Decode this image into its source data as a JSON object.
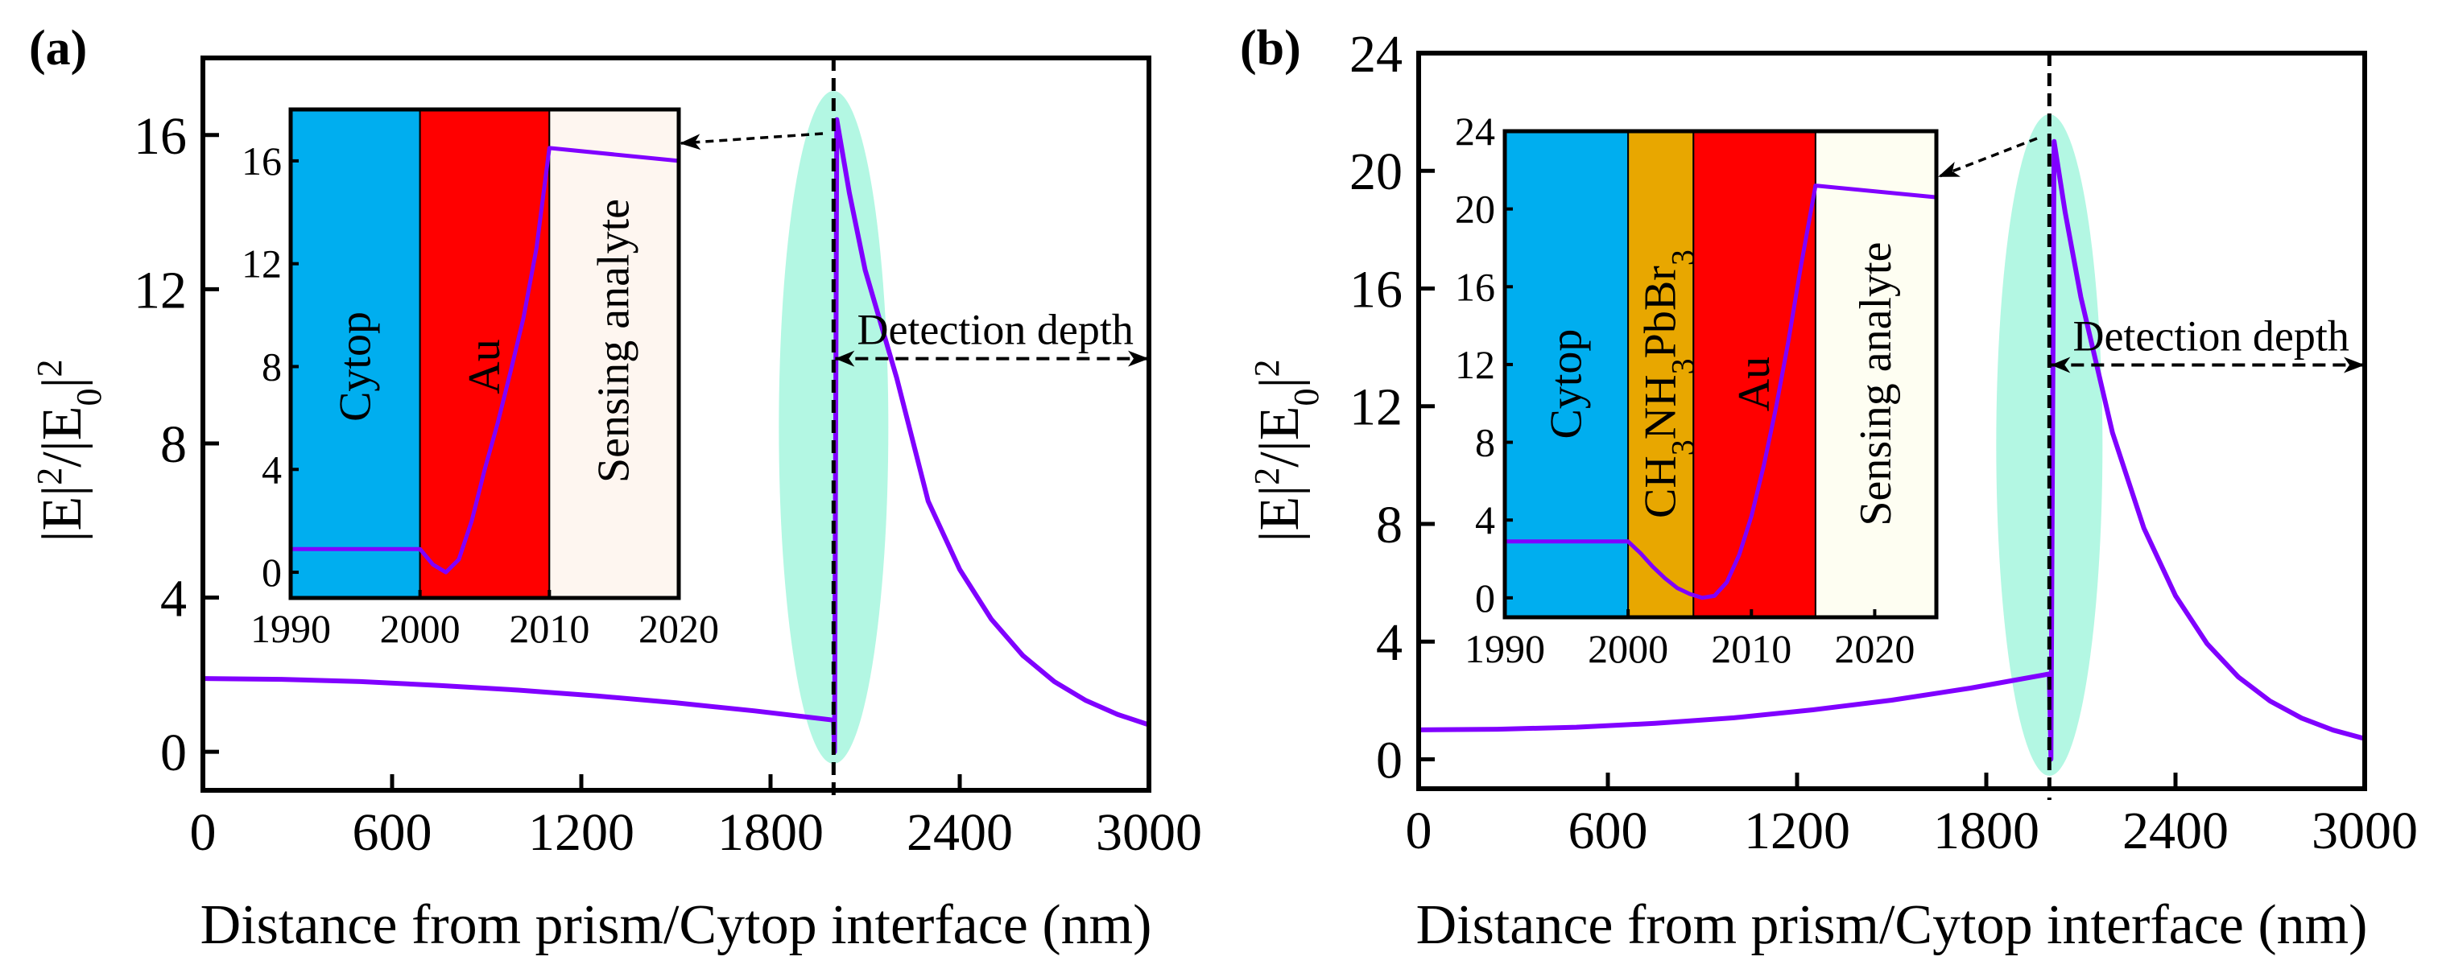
{
  "colors": {
    "curve": "#8000FF",
    "ellipse": "#B3F7E3",
    "cytop": "#00AEEF",
    "perovskite": "#E8A700",
    "au": "#FF0000",
    "analyte_a": "#FEF6F0",
    "analyte_b": "#FEFEF2"
  },
  "chart_data": [
    {
      "panel_label": "(a)",
      "type": "line",
      "xlabel": "Distance from prism/Cytop interface (nm)",
      "ylabel_parts": [
        "|E|",
        "2",
        "/|E",
        "0",
        "|",
        "2"
      ],
      "xlim": [
        0,
        3000
      ],
      "ylim": [
        -1,
        18
      ],
      "xticks": [
        "0",
        "600",
        "1200",
        "1800",
        "2400",
        "3000"
      ],
      "yticks": [
        "0",
        "4",
        "8",
        "12",
        "16"
      ],
      "series": [
        {
          "name": "|E|^2/|E0|^2",
          "x": [
            0,
            250,
            500,
            750,
            1000,
            1250,
            1500,
            1750,
            2000,
            2003,
            2010,
            2050,
            2100,
            2200,
            2300,
            2400,
            2500,
            2600,
            2700,
            2800,
            2900,
            3000
          ],
          "y": [
            1.9,
            1.88,
            1.82,
            1.72,
            1.6,
            1.45,
            1.27,
            1.06,
            0.82,
            0.0,
            16.4,
            14.5,
            12.5,
            9.7,
            6.5,
            4.73,
            3.44,
            2.5,
            1.82,
            1.33,
            0.97,
            0.7
          ]
        }
      ],
      "marker_x": 2000,
      "annotation": {
        "text": "Detection depth",
        "x_from": 2000,
        "x_to": 3000,
        "y": 10.2
      },
      "inset": {
        "xlim": [
          1990,
          2020
        ],
        "ylim": [
          -1,
          18
        ],
        "xticks": [
          "1990",
          "2000",
          "2010",
          "2020"
        ],
        "yticks": [
          "0",
          "4",
          "8",
          "12",
          "16"
        ],
        "layers": [
          {
            "name": "Cytop",
            "from": 1990,
            "to": 2000,
            "color_key": "cytop",
            "label_y": 8
          },
          {
            "name": "Au",
            "from": 2000,
            "to": 2010,
            "color_key": "au",
            "label_y": 8
          },
          {
            "name": "Sensing analyte",
            "from": 2010,
            "to": 2020,
            "color_key": "analyte_a",
            "label_y": 9
          }
        ],
        "series": {
          "x": [
            1990,
            2000,
            2001,
            2002,
            2003,
            2004,
            2005,
            2006,
            2007,
            2008,
            2009,
            2010,
            2020
          ],
          "y": [
            0.9,
            0.9,
            0.3,
            0.0,
            0.5,
            2.0,
            4.0,
            5.8,
            7.8,
            9.9,
            12.6,
            16.5,
            16.0
          ]
        }
      }
    },
    {
      "panel_label": "(b)",
      "type": "line",
      "xlabel": "Distance from prism/Cytop interface (nm)",
      "ylabel_parts": [
        "|E|",
        "2",
        "/|E",
        "0",
        "|",
        "2"
      ],
      "xlim": [
        0,
        3000
      ],
      "ylim": [
        -1,
        24
      ],
      "xticks": [
        "0",
        "600",
        "1200",
        "1800",
        "2400",
        "3000"
      ],
      "yticks": [
        "0",
        "4",
        "8",
        "12",
        "16",
        "20",
        "24"
      ],
      "series": [
        {
          "name": "|E|^2/|E0|^2",
          "x": [
            0,
            250,
            500,
            750,
            1000,
            1250,
            1500,
            1750,
            2000,
            2005,
            2015,
            2050,
            2100,
            2200,
            2300,
            2400,
            2500,
            2600,
            2700,
            2800,
            2900,
            3000
          ],
          "y": [
            1.0,
            1.02,
            1.09,
            1.22,
            1.41,
            1.68,
            2.01,
            2.42,
            2.9,
            0.0,
            21.0,
            18.6,
            15.7,
            11.1,
            7.85,
            5.56,
            3.93,
            2.79,
            1.98,
            1.4,
            0.99,
            0.7
          ]
        }
      ],
      "marker_x": 2000,
      "annotation": {
        "text": "Detection depth",
        "x_from": 2000,
        "x_to": 3000,
        "y": 13.4
      },
      "inset": {
        "xlim": [
          1990,
          2025
        ],
        "ylim": [
          -1,
          24
        ],
        "xticks": [
          "1990",
          "2000",
          "2010",
          "2020"
        ],
        "yticks": [
          "0",
          "4",
          "8",
          "12",
          "16",
          "20",
          "24"
        ],
        "layers": [
          {
            "name": "Cytop",
            "from": 1990,
            "to": 2000,
            "color_key": "cytop",
            "label_y": 11
          },
          {
            "name_parts": [
              "CH",
              "3",
              "NH",
              "3",
              "PbBr",
              "3"
            ],
            "name": "CH3NH3PbBr3",
            "from": 2000,
            "to": 2005.3,
            "color_key": "perovskite",
            "label_y": 11
          },
          {
            "name": "Au",
            "from": 2005.3,
            "to": 2015.2,
            "color_key": "au",
            "label_y": 11
          },
          {
            "name": "Sensing analyte",
            "from": 2015.2,
            "to": 2025,
            "color_key": "analyte_b",
            "label_y": 11
          }
        ],
        "series": {
          "x": [
            1990,
            2000,
            2001,
            2002,
            2003,
            2004,
            2005,
            2006,
            2007,
            2008,
            2009,
            2010,
            2011,
            2012,
            2013,
            2014,
            2015.2,
            2025
          ],
          "y": [
            2.9,
            2.9,
            2.3,
            1.6,
            1.0,
            0.5,
            0.2,
            0.0,
            0.1,
            0.8,
            2.2,
            4.2,
            6.8,
            9.8,
            13.2,
            17.0,
            21.2,
            20.6
          ]
        }
      }
    }
  ]
}
